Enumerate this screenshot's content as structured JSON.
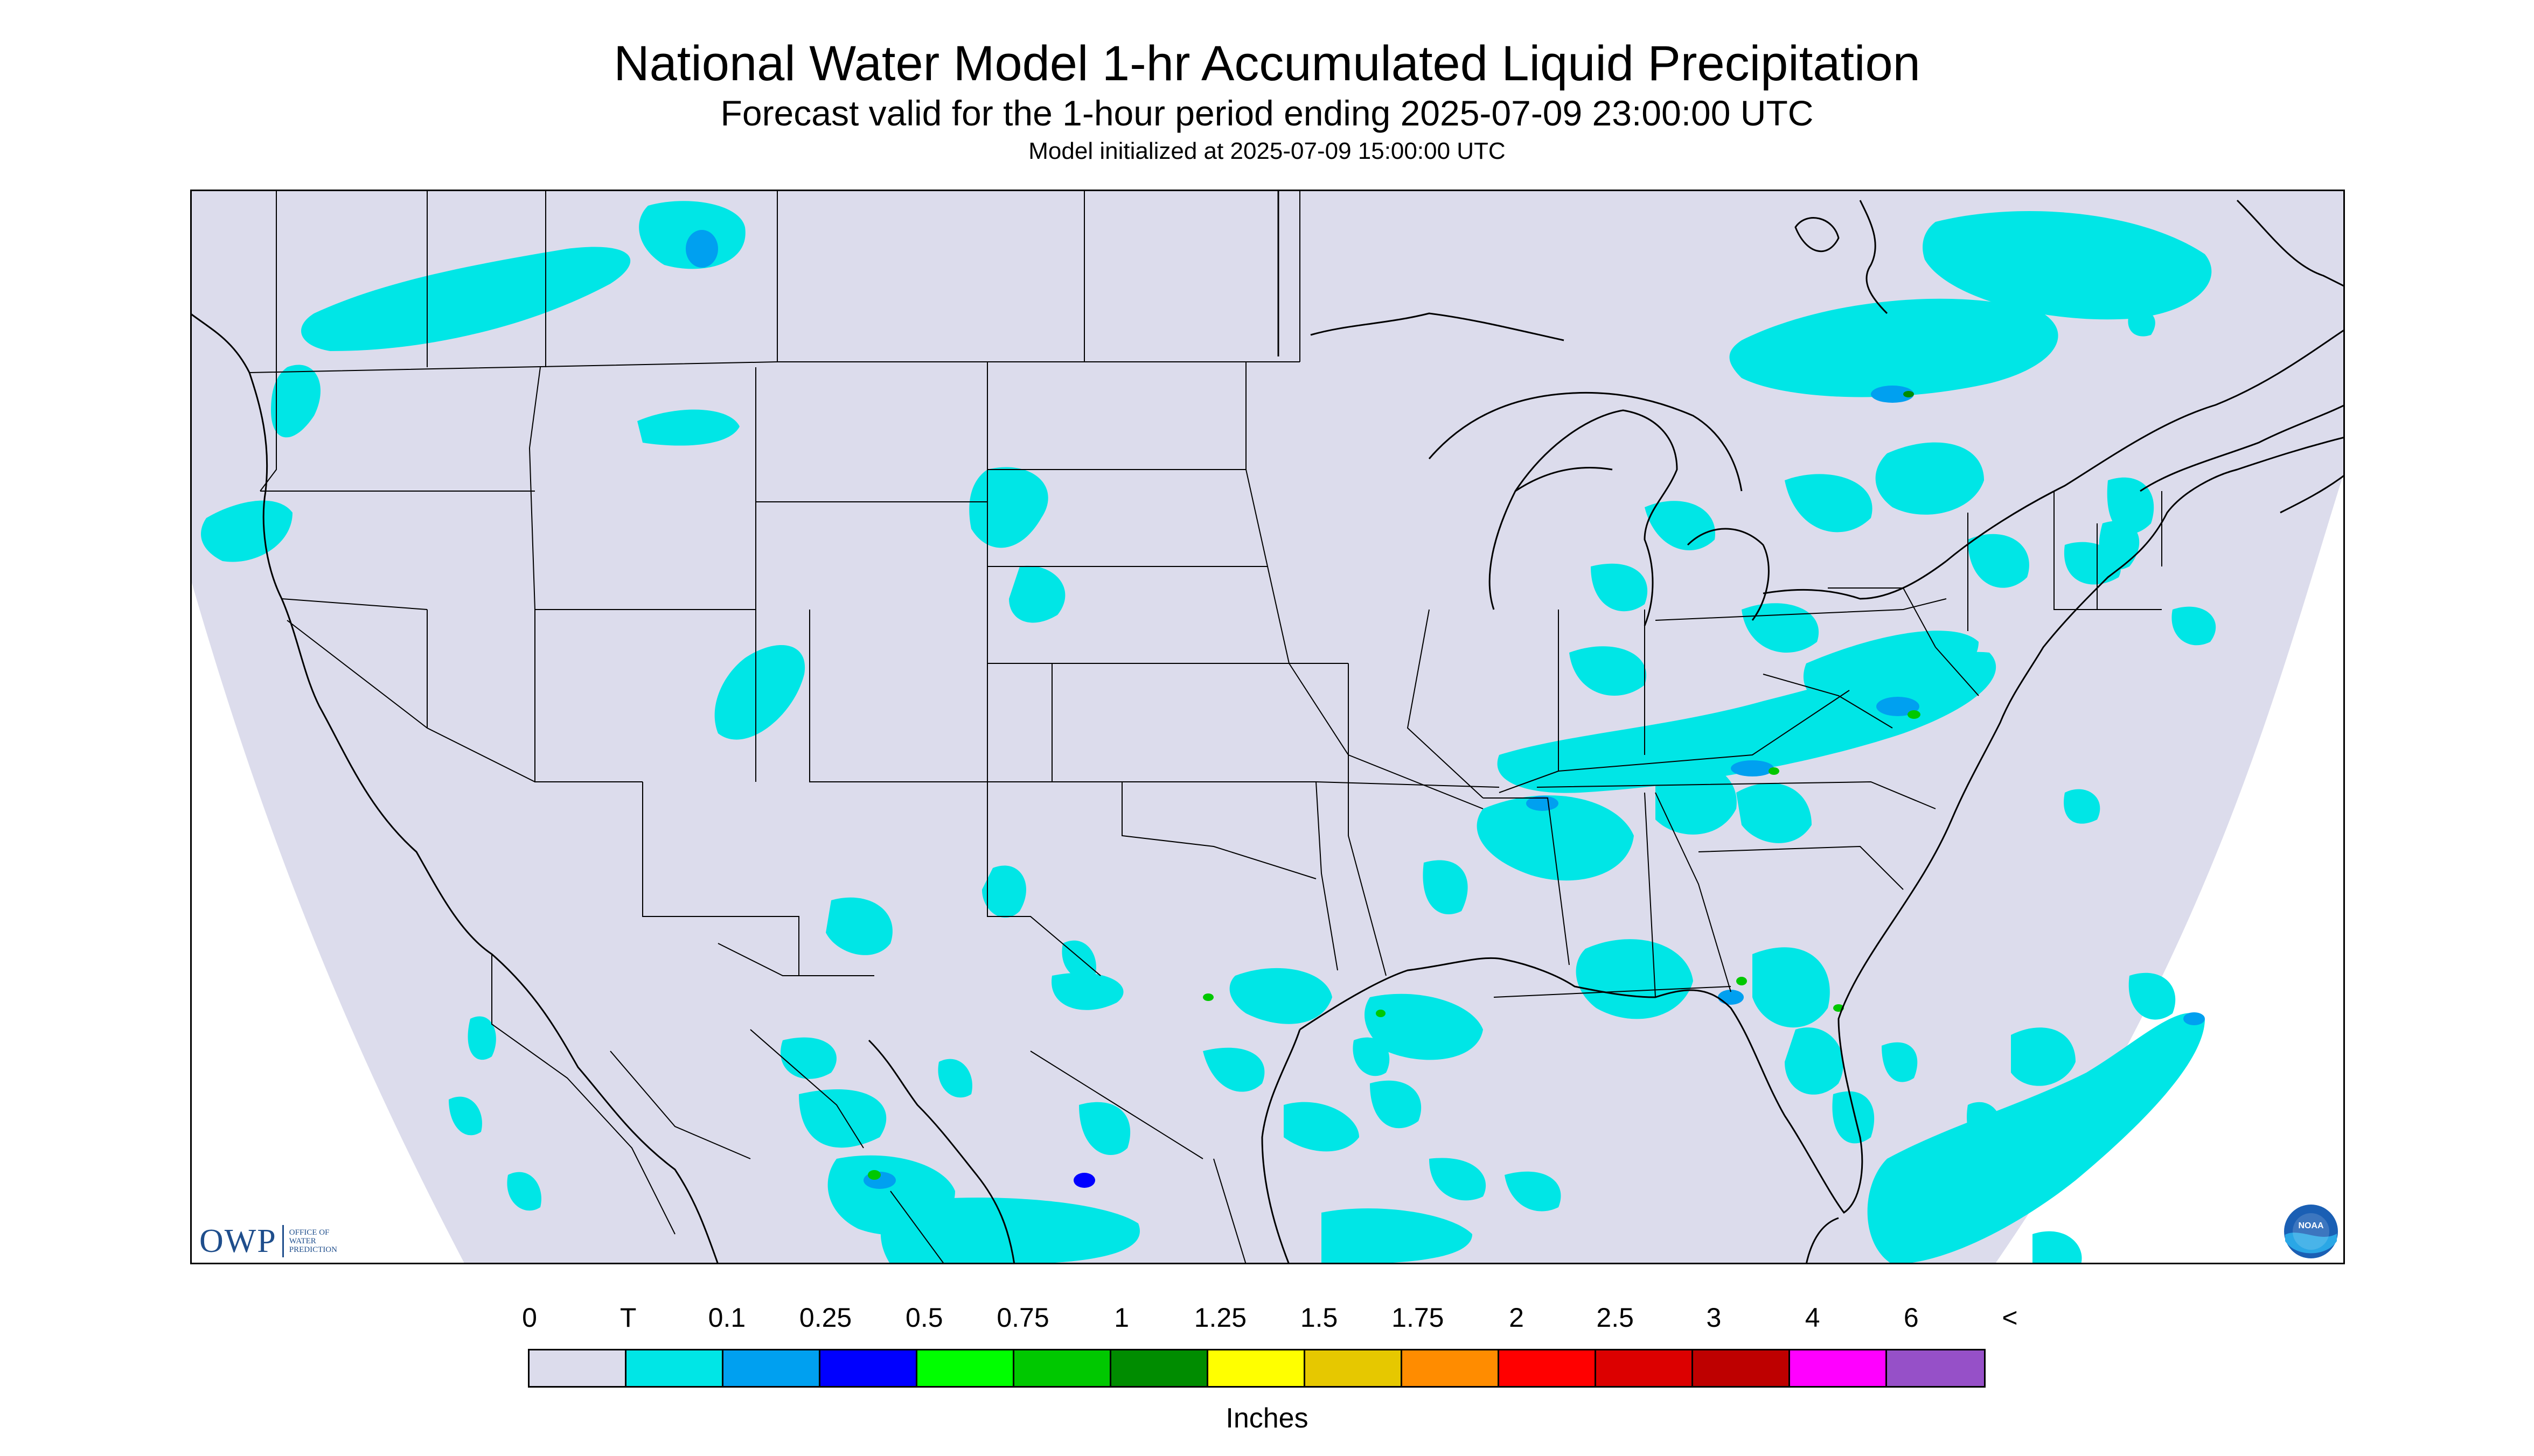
{
  "title": "National Water Model 1-hr Accumulated Liquid Precipitation",
  "subtitle": "Forecast valid for the 1-hour period ending 2025-07-09 23:00:00 UTC",
  "init_line": "Model initialized at 2025-07-09 15:00:00 UTC",
  "logos": {
    "owp_letters": "OWP",
    "owp_text": "OFFICE OF WATER PREDICTION",
    "noaa_text": "NOAA"
  },
  "legend": {
    "labels": [
      "0",
      "T",
      "0.1",
      "0.25",
      "0.5",
      "0.75",
      "1",
      "1.25",
      "1.5",
      "1.75",
      "2",
      "2.5",
      "3",
      "4",
      "6",
      "<"
    ],
    "colors": [
      "#dcdcec",
      "#00e6e6",
      "#00a0f0",
      "#0000ff",
      "#00ff00",
      "#00c800",
      "#008c00",
      "#ffff00",
      "#e6c800",
      "#ff8c00",
      "#ff0000",
      "#dc0000",
      "#be0000",
      "#ff00ff",
      "#9650c8"
    ],
    "units": "Inches"
  },
  "map": {
    "projection": "Lambert Conformal (CONUS)",
    "domain_fill": "#dcdcec",
    "border_color": "#000000"
  }
}
